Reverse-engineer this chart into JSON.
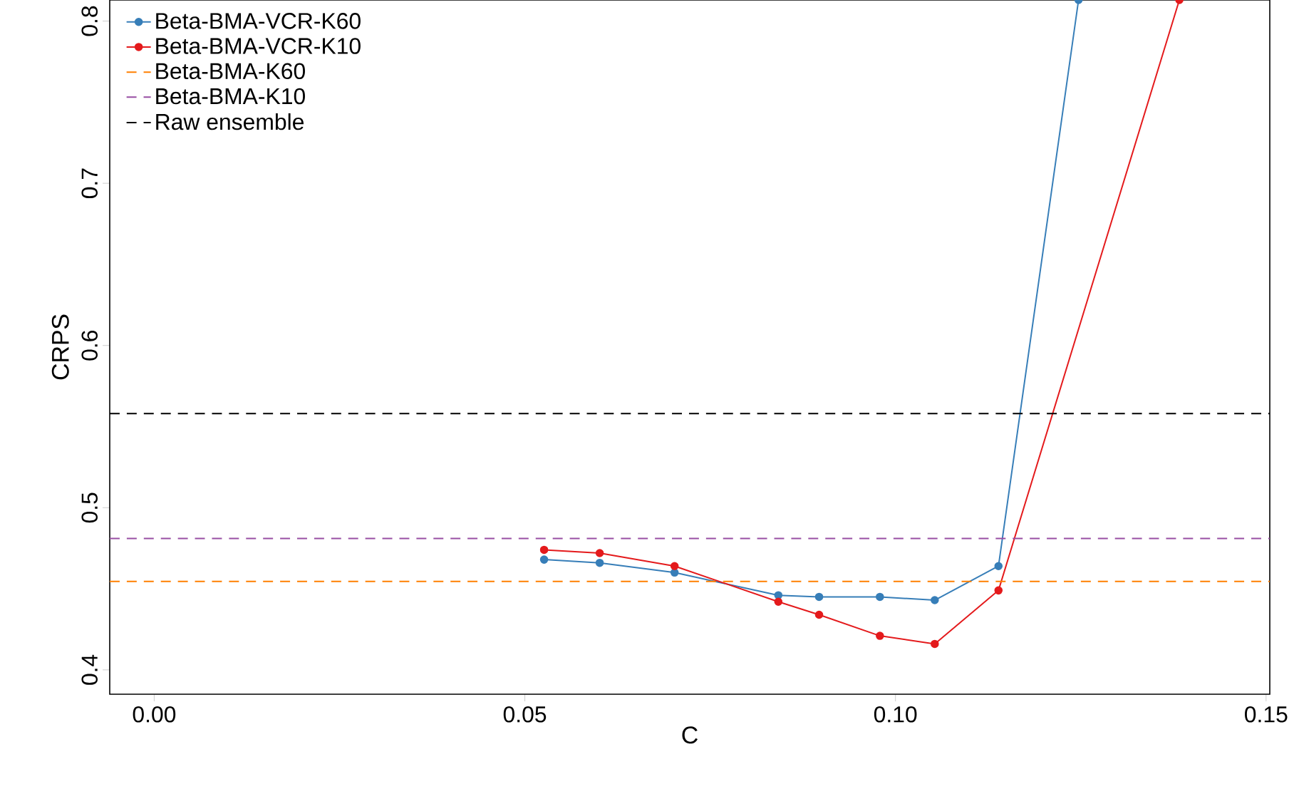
{
  "chart_data": {
    "type": "line",
    "xlabel": "C",
    "ylabel": "CRPS",
    "xlim": [
      -0.006,
      0.1505
    ],
    "ylim": [
      0.385,
      0.813
    ],
    "xticks": [
      {
        "value": 0,
        "label": "0.00"
      },
      {
        "value": 0.05,
        "label": "0.05"
      },
      {
        "value": 0.1,
        "label": "0.10"
      },
      {
        "value": 0.15,
        "label": "0.15"
      }
    ],
    "yticks": [
      0.4,
      0.5,
      0.6,
      0.7,
      0.8
    ],
    "marker": "circle",
    "line_style": "solid",
    "legend": "top left",
    "series": [
      {
        "name": "Beta-BMA-VCR-K60",
        "color": "#377eb8",
        "x": [
          0.0526,
          0.0601,
          0.0702,
          0.0842,
          0.0897,
          0.0979,
          0.1053,
          0.1139,
          0.1247
        ],
        "values": [
          0.468,
          0.466,
          0.46,
          0.446,
          0.445,
          0.445,
          0.443,
          0.464,
          0.813
        ]
      },
      {
        "name": "Beta-BMA-VCR-K10",
        "color": "#e41a1c",
        "x": [
          0.0526,
          0.0601,
          0.0702,
          0.0842,
          0.0897,
          0.0979,
          0.1053,
          0.1139,
          0.1383
        ],
        "values": [
          0.474,
          0.472,
          0.464,
          0.442,
          0.434,
          0.421,
          0.416,
          0.449,
          0.813
        ]
      }
    ],
    "ref_lines": [
      {
        "axis": "y",
        "value": 0.4545,
        "label": "Beta-BMA-K60",
        "color": "#ff7f00",
        "line_style": "dashed"
      },
      {
        "axis": "y",
        "value": 0.481,
        "label": "Beta-BMA-K10",
        "color": "#984ea3",
        "line_style": "dashed"
      },
      {
        "axis": "y",
        "value": 0.558,
        "label": "Raw ensemble",
        "color": "#000000",
        "line_style": "dashed"
      }
    ]
  }
}
